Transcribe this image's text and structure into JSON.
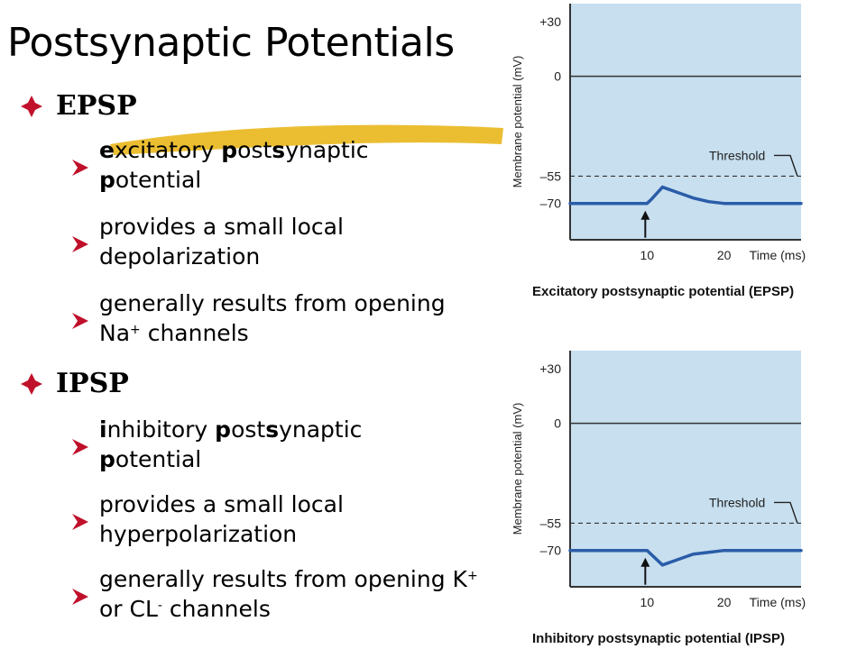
{
  "slide": {
    "title": "Postsynaptic Potentials"
  },
  "epsp": {
    "heading": "EPSP",
    "item1_rest": "xcitatory ",
    "item1_p": "p",
    "item1_os": "ost",
    "item1_s": "s",
    "item1_tail": "ynaptic",
    "item1_p2": "p",
    "item1_tail2": "otential",
    "item1_e": "e",
    "item2": "provides a small local depolarization",
    "item3_a": "generally results from opening Na",
    "item3_sup": "+",
    "item3_b": " channels"
  },
  "ipsp": {
    "heading": "IPSP",
    "item1_i": "i",
    "item1_rest": "nhibitory ",
    "item1_p": "p",
    "item1_os": "ost",
    "item1_s": "s",
    "item1_tail": "ynaptic",
    "item1_p2": "p",
    "item1_tail2": "otential",
    "item2": "provides a small local hyperpolarization",
    "item3_a": "generally results from opening K",
    "item3_sup": "+",
    "item3_b": " or CL",
    "item3_sup2": "-",
    "item3_c": " channels"
  },
  "chart_data": [
    {
      "type": "line",
      "caption": "Excitatory postsynaptic potential (EPSP)",
      "ylabel": "Membrane potential (mV)",
      "xlabel": "Time (ms)",
      "y_ticks": [
        "+30",
        "0",
        "–55",
        "–70"
      ],
      "y_tick_values": [
        30,
        0,
        -55,
        -70
      ],
      "x_ticks": [
        "10",
        "20"
      ],
      "x_tick_values": [
        10,
        20
      ],
      "threshold_label": "Threshold",
      "threshold": -55,
      "reference_line": 0,
      "stimulus_time": 10,
      "xlim": [
        0,
        30
      ],
      "ylim": [
        -90,
        40
      ],
      "series": [
        {
          "x": [
            0,
            10,
            10.5,
            12,
            14,
            16,
            18,
            20,
            24,
            28,
            30
          ],
          "y": [
            -70,
            -70,
            -68,
            -61,
            -64,
            -67,
            -69,
            -70,
            -70,
            -70,
            -70
          ]
        }
      ],
      "colors": {
        "background": "#c7dfef",
        "trace": "#2a5ca8",
        "axis": "#333333"
      }
    },
    {
      "type": "line",
      "caption": "Inhibitory postsynaptic potential (IPSP)",
      "ylabel": "Membrane potential (mV)",
      "xlabel": "Time (ms)",
      "y_ticks": [
        "+30",
        "0",
        "–55",
        "–70"
      ],
      "y_tick_values": [
        30,
        0,
        -55,
        -70
      ],
      "x_ticks": [
        "10",
        "20"
      ],
      "x_tick_values": [
        10,
        20
      ],
      "threshold_label": "Threshold",
      "threshold": -55,
      "reference_line": 0,
      "stimulus_time": 10,
      "xlim": [
        0,
        30
      ],
      "ylim": [
        -90,
        40
      ],
      "series": [
        {
          "x": [
            0,
            10,
            10.5,
            12,
            14,
            16,
            18,
            20,
            24,
            28,
            30
          ],
          "y": [
            -70,
            -70,
            -72,
            -78,
            -75,
            -72,
            -71,
            -70,
            -70,
            -70,
            -70
          ]
        }
      ],
      "colors": {
        "background": "#c7dfef",
        "trace": "#2a5ca8",
        "axis": "#333333"
      }
    }
  ],
  "colors": {
    "diamond": "#c0102a",
    "arrow": "#c0102a",
    "highlight": "#e9b71c"
  }
}
